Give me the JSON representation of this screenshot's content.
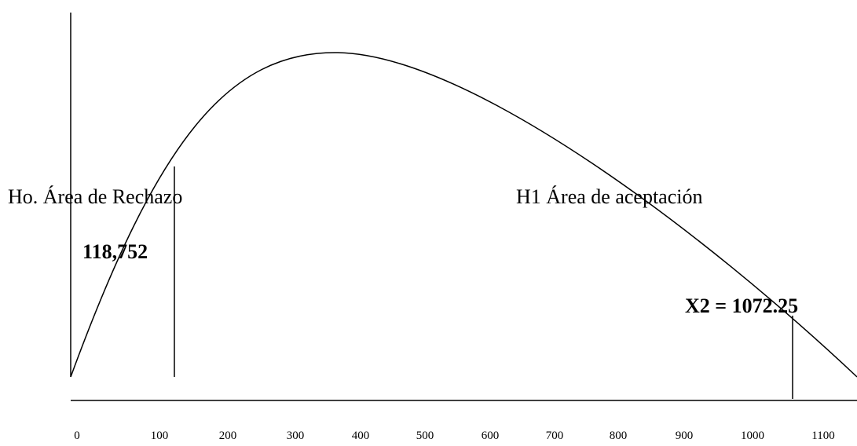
{
  "labels": {
    "rejection_area": "Ho. Área de Rechazo",
    "acceptance_area": "H1 Área de aceptación",
    "critical_value": "118,752",
    "test_statistic": "X2 = 1072.25"
  },
  "x_axis": {
    "ticks": [
      "0",
      "100",
      "200",
      "300",
      "400",
      "500",
      "600",
      "700",
      "800",
      "900",
      "1000",
      "1100"
    ]
  },
  "marks": {
    "critical_value": 118.752,
    "test_statistic": 1072.25
  },
  "style": {
    "stroke_color": "#000000"
  }
}
